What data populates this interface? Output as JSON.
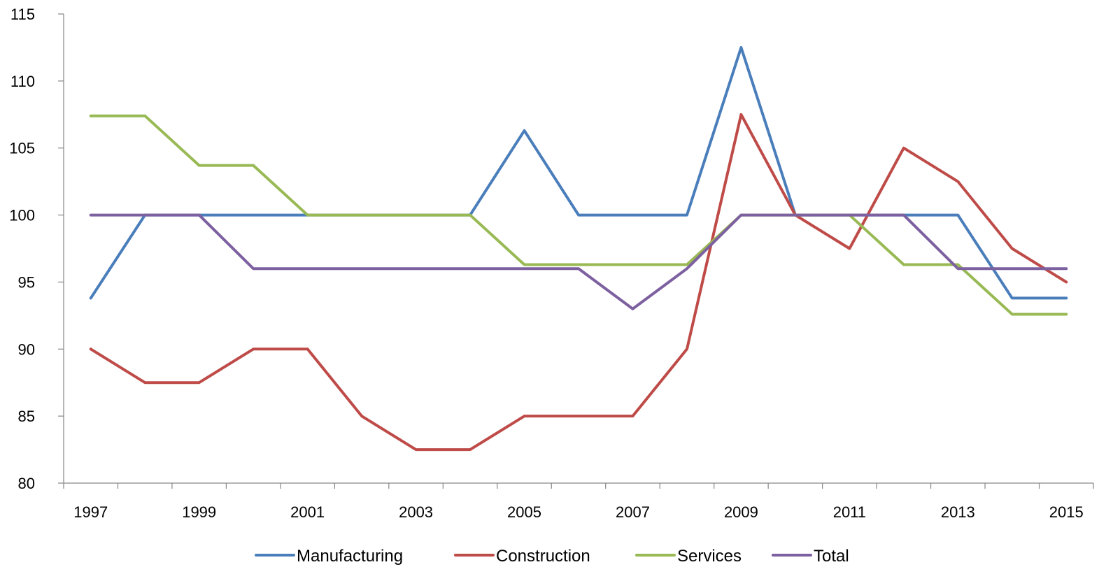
{
  "chart_data": {
    "type": "line",
    "title": "",
    "xlabel": "",
    "ylabel": "",
    "ylim": [
      80,
      115
    ],
    "y_ticks": [
      "80",
      "85",
      "90",
      "95",
      "100",
      "105",
      "110",
      "115"
    ],
    "categories": [
      "1997",
      "1998",
      "1999",
      "2000",
      "2001",
      "2002",
      "2003",
      "2004",
      "2005",
      "2006",
      "2007",
      "2008",
      "2009",
      "2010",
      "2011",
      "2012",
      "2013",
      "2014",
      "2015"
    ],
    "x_tick_labels": [
      "1997",
      "",
      "1999",
      "",
      "2001",
      "",
      "2003",
      "",
      "2005",
      "",
      "2007",
      "",
      "2009",
      "",
      "2011",
      "",
      "2013",
      "",
      "2015"
    ],
    "grid": false,
    "legend_position": "bottom",
    "series": [
      {
        "name": "Manufacturing",
        "color": "#4A7EBB",
        "values": [
          93.8,
          100,
          100,
          100,
          100,
          100,
          100,
          100,
          106.3,
          100,
          100,
          100,
          112.5,
          100,
          100,
          100,
          100,
          93.8,
          93.8
        ]
      },
      {
        "name": "Construction",
        "color": "#BE4B48",
        "values": [
          90,
          87.5,
          87.5,
          90,
          90,
          85,
          82.5,
          82.5,
          85,
          85,
          85,
          90,
          107.5,
          100,
          97.5,
          105,
          102.5,
          97.5,
          95
        ]
      },
      {
        "name": "Services",
        "color": "#98B954",
        "values": [
          107.4,
          107.4,
          103.7,
          103.7,
          100,
          100,
          100,
          100,
          96.3,
          96.3,
          96.3,
          96.3,
          100,
          100,
          100,
          96.3,
          96.3,
          92.6,
          92.6
        ]
      },
      {
        "name": "Total",
        "color": "#7D60A0",
        "values": [
          100,
          100,
          100,
          96,
          96,
          96,
          96,
          96,
          96,
          96,
          93,
          96,
          100,
          100,
          100,
          100,
          96,
          96,
          96
        ]
      }
    ]
  }
}
